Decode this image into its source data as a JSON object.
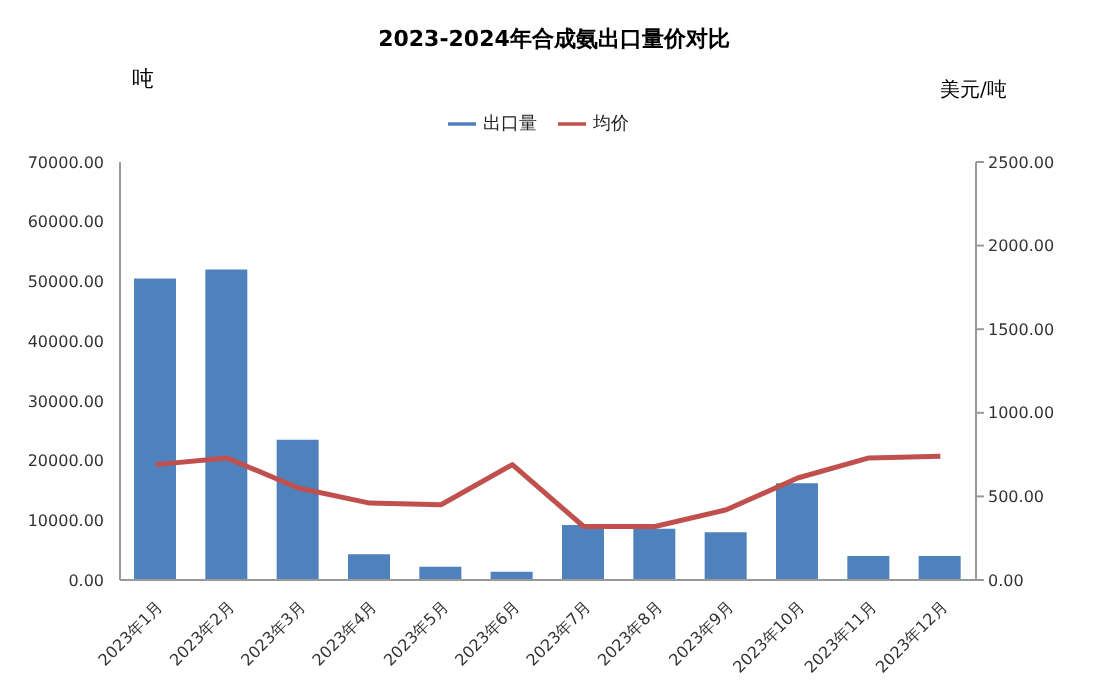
{
  "chart_data": {
    "type": "bar",
    "title": "2023-2024年合成氨出口量价对比",
    "ylabel": "吨",
    "y2label": "美元/吨",
    "categories": [
      "2023年1月",
      "2023年2月",
      "2023年3月",
      "2023年4月",
      "2023年5月",
      "2023年6月",
      "2023年7月",
      "2023年8月",
      "2023年9月",
      "2023年10月",
      "2023年11月",
      "2023年12月"
    ],
    "series": [
      {
        "name": "出口量",
        "color": "#4f81bd",
        "values": [
          50500,
          52000,
          23500,
          4300,
          2200,
          1400,
          9200,
          8600,
          8000,
          16200,
          4000,
          4000
        ]
      },
      {
        "name": "均价",
        "type": "line",
        "axis": "y2",
        "color": "#c0504d",
        "values": [
          690,
          730,
          550,
          460,
          450,
          690,
          320,
          320,
          420,
          610,
          730,
          740
        ]
      }
    ],
    "ylim": [
      0,
      70000
    ],
    "yticks": [
      {
        "value": 0,
        "label": "0.00"
      },
      {
        "value": 10000,
        "label": "10000.00"
      },
      {
        "value": 20000,
        "label": "20000.00"
      },
      {
        "value": 30000,
        "label": "30000.00"
      },
      {
        "value": 40000,
        "label": "40000.00"
      },
      {
        "value": 50000,
        "label": "50000.00"
      },
      {
        "value": 60000,
        "label": "60000.00"
      },
      {
        "value": 70000,
        "label": "70000.00"
      }
    ],
    "y2lim": [
      0,
      2500
    ],
    "y2ticks": [
      {
        "value": 0,
        "label": "0.00"
      },
      {
        "value": 500,
        "label": "500.00"
      },
      {
        "value": 1000,
        "label": "1000.00"
      },
      {
        "value": 1500,
        "label": "1500.00"
      },
      {
        "value": 2000,
        "label": "2000.00"
      },
      {
        "value": 2500,
        "label": "2500.00"
      }
    ],
    "grid": false,
    "legend": "top",
    "marker": "none",
    "line_style": "solid"
  }
}
